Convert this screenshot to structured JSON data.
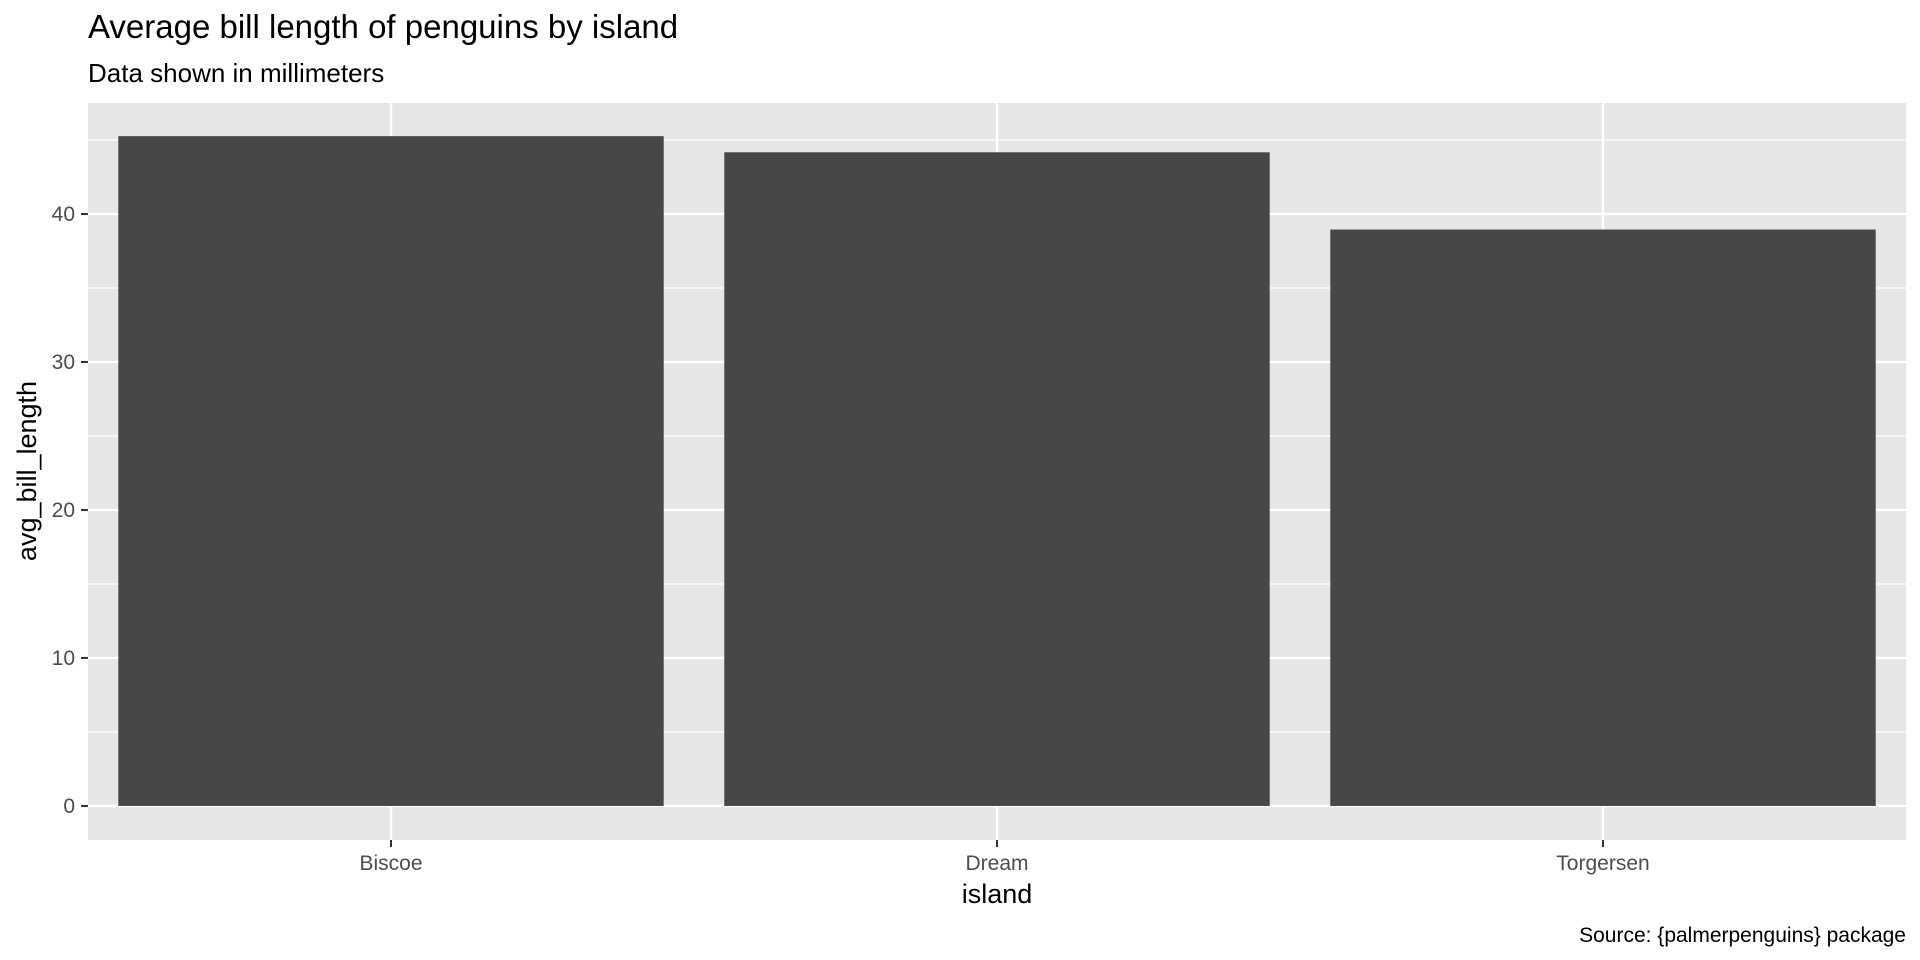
{
  "chart_data": {
    "type": "bar",
    "title": "Average bill length of penguins by island",
    "subtitle": "Data shown in millimeters",
    "xlabel": "island",
    "ylabel": "avg_bill_length",
    "caption": "Source: {palmerpenguins} package",
    "categories": [
      "Biscoe",
      "Dream",
      "Torgersen"
    ],
    "values": [
      45.26,
      44.17,
      38.95
    ],
    "ylim": [
      -2.3,
      47.5
    ],
    "yticks": [
      0,
      10,
      20,
      30,
      40
    ],
    "ytick_labels": [
      "0",
      "10",
      "20",
      "30",
      "40"
    ],
    "grid": true,
    "legend": "none",
    "colors": {
      "bar": "#474747",
      "panel": "#e6e6e6",
      "grid": "#ffffff",
      "tick_label": "#4d4d4d"
    }
  }
}
